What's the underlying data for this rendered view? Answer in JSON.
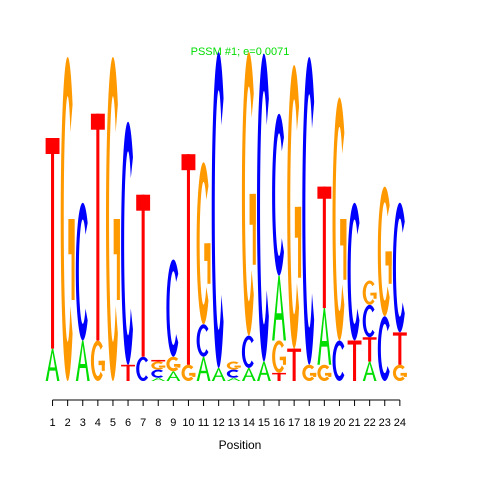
{
  "chart_data": {
    "type": "sequence-logo",
    "title": "PSSM #1; e=0.0071",
    "xlabel": "Position",
    "ylabel": "",
    "colors": {
      "A": "#00dd00",
      "C": "#0000ff",
      "G": "#ff9900",
      "T": "#ff0000"
    },
    "positions": [
      {
        "pos": "1",
        "letters": [
          [
            "A",
            0.2
          ],
          [
            "T",
            1.3
          ]
        ]
      },
      {
        "pos": "2",
        "letters": [
          [
            "G",
            2.0
          ]
        ]
      },
      {
        "pos": "3",
        "letters": [
          [
            "A",
            0.25
          ],
          [
            "C",
            0.85
          ]
        ]
      },
      {
        "pos": "4",
        "letters": [
          [
            "G",
            0.25
          ],
          [
            "T",
            1.4
          ]
        ]
      },
      {
        "pos": "5",
        "letters": [
          [
            "G",
            2.0
          ]
        ]
      },
      {
        "pos": "6",
        "letters": [
          [
            "T",
            0.1
          ],
          [
            "C",
            1.5
          ]
        ]
      },
      {
        "pos": "7",
        "letters": [
          [
            "C",
            0.15
          ],
          [
            "T",
            1.0
          ]
        ]
      },
      {
        "pos": "8",
        "letters": [
          [
            "A",
            0.02
          ],
          [
            "C",
            0.05
          ],
          [
            "G",
            0.05
          ],
          [
            "T",
            0.01
          ]
        ]
      },
      {
        "pos": "9",
        "letters": [
          [
            "A",
            0.06
          ],
          [
            "G",
            0.09
          ],
          [
            "C",
            0.6
          ]
        ]
      },
      {
        "pos": "10",
        "letters": [
          [
            "G",
            0.1
          ],
          [
            "T",
            1.3
          ]
        ]
      },
      {
        "pos": "11",
        "letters": [
          [
            "A",
            0.15
          ],
          [
            "C",
            0.2
          ],
          [
            "G",
            1.0
          ]
        ]
      },
      {
        "pos": "12",
        "letters": [
          [
            "A",
            0.08
          ],
          [
            "C",
            1.95
          ]
        ]
      },
      {
        "pos": "13",
        "letters": [
          [
            "A",
            0.02
          ],
          [
            "C",
            0.05
          ],
          [
            "G",
            0.05
          ]
        ]
      },
      {
        "pos": "14",
        "letters": [
          [
            "A",
            0.08
          ],
          [
            "C",
            0.2
          ],
          [
            "G",
            1.75
          ]
        ]
      },
      {
        "pos": "15",
        "letters": [
          [
            "A",
            0.12
          ],
          [
            "C",
            1.9
          ]
        ]
      },
      {
        "pos": "16",
        "letters": [
          [
            "T",
            0.05
          ],
          [
            "G",
            0.2
          ],
          [
            "A",
            0.4
          ],
          [
            "C",
            1.0
          ]
        ]
      },
      {
        "pos": "17",
        "letters": [
          [
            "T",
            0.2
          ],
          [
            "G",
            1.75
          ]
        ]
      },
      {
        "pos": "18",
        "letters": [
          [
            "G",
            0.1
          ],
          [
            "C",
            1.9
          ]
        ]
      },
      {
        "pos": "19",
        "letters": [
          [
            "G",
            0.1
          ],
          [
            "A",
            0.35
          ],
          [
            "T",
            0.75
          ]
        ]
      },
      {
        "pos": "20",
        "letters": [
          [
            "C",
            0.25
          ],
          [
            "G",
            1.5
          ]
        ]
      },
      {
        "pos": "21",
        "letters": [
          [
            "T",
            0.25
          ],
          [
            "C",
            0.85
          ]
        ]
      },
      {
        "pos": "22",
        "letters": [
          [
            "A",
            0.12
          ],
          [
            "T",
            0.15
          ],
          [
            "C",
            0.2
          ],
          [
            "G",
            0.15
          ]
        ]
      },
      {
        "pos": "23",
        "letters": [
          [
            "C",
            0.4
          ],
          [
            "G",
            0.8
          ]
        ]
      },
      {
        "pos": "24",
        "letters": [
          [
            "G",
            0.1
          ],
          [
            "T",
            0.2
          ],
          [
            "C",
            0.8
          ]
        ]
      }
    ]
  }
}
